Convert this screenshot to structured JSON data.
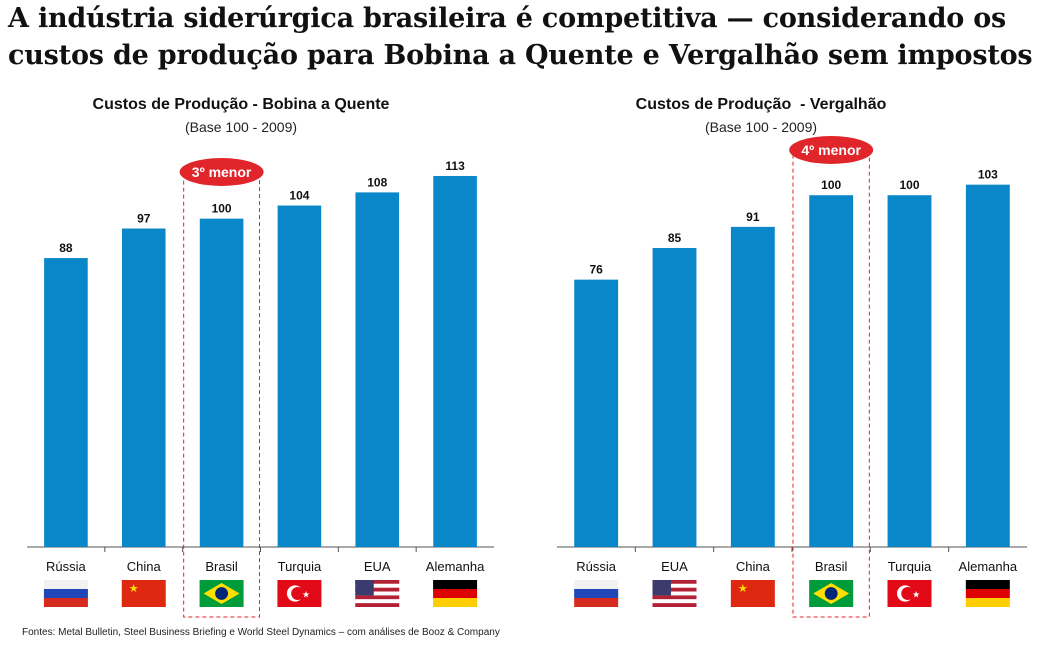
{
  "headline": {
    "line1": "A indústria siderúrgica brasileira é competitiva — considerando os",
    "line2": "custos de produção para Bobina a Quente e Vergalhão sem impostos"
  },
  "source": "Fontes: Metal Bulletin, Steel Business Briefing e World Steel Dynamics – com análises de Booz & Company",
  "colors": {
    "bar": "#0a87c9",
    "highlight": "#e0262b",
    "axis": "#555555"
  },
  "chart_data": [
    {
      "type": "bar",
      "title": "Custos de Produção - Bobina a Quente",
      "subtitle": "(Base 100 - 2009)",
      "categories": [
        "Rússia",
        "China",
        "Brasil",
        "Turquia",
        "EUA",
        "Alemanha"
      ],
      "values": [
        88,
        97,
        100,
        104,
        108,
        113
      ],
      "flags": [
        "russia-flag",
        "china-flag",
        "brazil-flag",
        "turkey-flag",
        "usa-flag",
        "germany-flag"
      ],
      "highlight": {
        "category": "Brasil",
        "label": "3º menor"
      },
      "ylim": [
        0,
        120
      ],
      "grid": false
    },
    {
      "type": "bar",
      "title": "Custos de Produção  - Vergalhão",
      "subtitle": "(Base 100 - 2009)",
      "categories": [
        "Rússia",
        "EUA",
        "China",
        "Brasil",
        "Turquia",
        "Alemanha"
      ],
      "values": [
        76,
        85,
        91,
        100,
        100,
        103
      ],
      "flags": [
        "russia-flag",
        "usa-flag",
        "china-flag",
        "brazil-flag",
        "turkey-flag",
        "germany-flag"
      ],
      "highlight": {
        "category": "Brasil",
        "label": "4º menor"
      },
      "ylim": [
        0,
        112
      ],
      "grid": false
    }
  ]
}
